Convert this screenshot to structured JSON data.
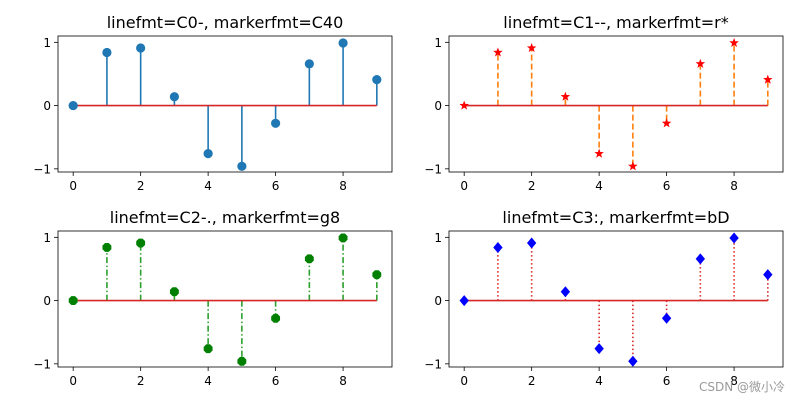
{
  "chart_data": [
    {
      "type": "stem",
      "title": "linefmt=C0-, markerfmt=C40",
      "x": [
        0,
        1,
        2,
        3,
        4,
        5,
        6,
        7,
        8,
        9
      ],
      "values": [
        0.0,
        0.84,
        0.91,
        0.14,
        -0.76,
        -0.96,
        -0.28,
        0.66,
        0.99,
        0.41
      ],
      "xticks": [
        "0",
        "2",
        "4",
        "6",
        "8"
      ],
      "yticks": [
        "−1",
        "0",
        "1"
      ],
      "ylim": [
        -1.05,
        1.1
      ],
      "xlim": [
        -0.45,
        9.45
      ],
      "line_color": "#1f77b4",
      "line_style": "solid",
      "marker": "circle",
      "marker_color": "#1f77b4",
      "baseline_color": "#d62728"
    },
    {
      "type": "stem",
      "title": "linefmt=C1--, markerfmt=r*",
      "x": [
        0,
        1,
        2,
        3,
        4,
        5,
        6,
        7,
        8,
        9
      ],
      "values": [
        0.0,
        0.84,
        0.91,
        0.14,
        -0.76,
        -0.96,
        -0.28,
        0.66,
        0.99,
        0.41
      ],
      "xticks": [
        "0",
        "2",
        "4",
        "6",
        "8"
      ],
      "yticks": [
        "−1",
        "0",
        "1"
      ],
      "ylim": [
        -1.05,
        1.1
      ],
      "xlim": [
        -0.45,
        9.45
      ],
      "line_color": "#ff7f0e",
      "line_style": "dashed",
      "marker": "star",
      "marker_color": "#ff0000",
      "baseline_color": "#d62728"
    },
    {
      "type": "stem",
      "title": "linefmt=C2-., markerfmt=g8",
      "x": [
        0,
        1,
        2,
        3,
        4,
        5,
        6,
        7,
        8,
        9
      ],
      "values": [
        0.0,
        0.84,
        0.91,
        0.14,
        -0.76,
        -0.96,
        -0.28,
        0.66,
        0.99,
        0.41
      ],
      "xticks": [
        "0",
        "2",
        "4",
        "6",
        "8"
      ],
      "yticks": [
        "−1",
        "0",
        "1"
      ],
      "ylim": [
        -1.05,
        1.1
      ],
      "xlim": [
        -0.45,
        9.45
      ],
      "line_color": "#2ca02c",
      "line_style": "dashdot",
      "marker": "octagon",
      "marker_color": "#008000",
      "baseline_color": "#d62728"
    },
    {
      "type": "stem",
      "title": "linefmt=C3:, markerfmt=bD",
      "x": [
        0,
        1,
        2,
        3,
        4,
        5,
        6,
        7,
        8,
        9
      ],
      "values": [
        0.0,
        0.84,
        0.91,
        0.14,
        -0.76,
        -0.96,
        -0.28,
        0.66,
        0.99,
        0.41
      ],
      "xticks": [
        "0",
        "2",
        "4",
        "6",
        "8"
      ],
      "yticks": [
        "−1",
        "0",
        "1"
      ],
      "ylim": [
        -1.05,
        1.1
      ],
      "xlim": [
        -0.45,
        9.45
      ],
      "line_color": "#d62728",
      "line_style": "dotted",
      "marker": "diamond",
      "marker_color": "#0000ff",
      "baseline_color": "#d62728"
    }
  ],
  "watermark": "CSDN @微小冷"
}
